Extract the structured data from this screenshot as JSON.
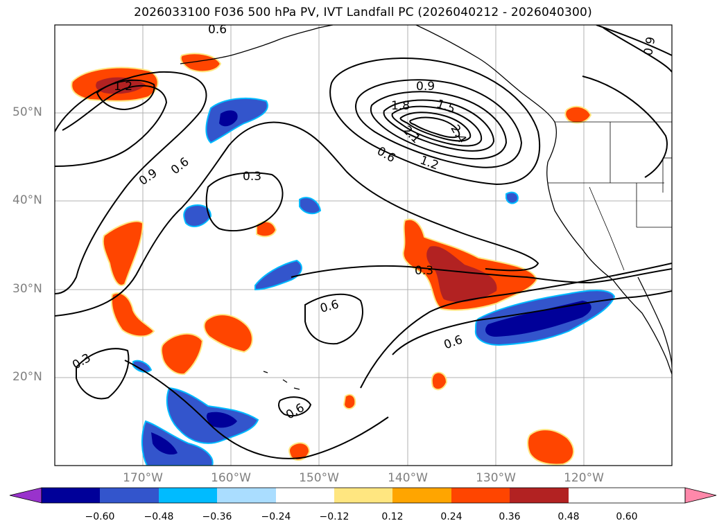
{
  "title": "2026033100 F036 500 hPa PV, IVT Landfall PC (2026040212 - 2026040300)",
  "lat_labels": [
    "50°N",
    "40°N",
    "30°N",
    "20°N"
  ],
  "lon_labels": [
    "170°W",
    "160°W",
    "150°W",
    "140°W",
    "130°W",
    "120°W"
  ],
  "colorbar": {
    "ticks": [
      "−0.60",
      "−0.48",
      "−0.36",
      "−0.24",
      "−0.12",
      "0.12",
      "0.24",
      "0.36",
      "0.48",
      "0.60"
    ],
    "colors": [
      "#9933cc",
      "#000099",
      "#3355cc",
      "#00bbff",
      "#aaddff",
      "#ffffff",
      "#ffe680",
      "#ffa500",
      "#ff4500",
      "#b22222",
      "#ff88aa"
    ]
  },
  "contour_labels": [
    "0.6",
    "1.2",
    "0.9",
    "0.6",
    "0.3",
    "0.9",
    "1.8",
    "1.5",
    "2.4",
    "2.1",
    "0.6",
    "1.2",
    "0.9",
    "0.3",
    "0.6",
    "0.6",
    "0.3",
    "0.6"
  ],
  "colors": {
    "positive_light": "#ff4500",
    "positive_dark": "#b22222",
    "negative_light": "#3355cc",
    "negative_dark": "#000099",
    "negative_edge": "#00bbff",
    "positive_edge": "#ffe680"
  }
}
